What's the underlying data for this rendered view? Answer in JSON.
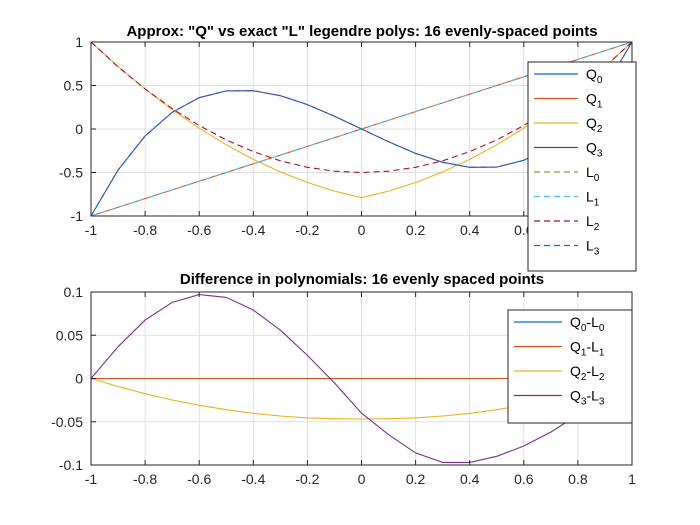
{
  "colors": {
    "blue": "#0072BD",
    "orange": "#D95319",
    "yellow": "#EDB120",
    "purple": "#7E2F8E",
    "green": "#77AC30",
    "cyan": "#4DBEEE",
    "darkred": "#A2142F",
    "grid": "#dfdfdf",
    "axis": "#262626"
  },
  "chart_data": [
    {
      "type": "line",
      "title": "Approx: \"Q\" vs exact \"L\" legendre polys: 16 evenly-spaced points",
      "xlabel": "",
      "ylabel": "",
      "xlim": [
        -1,
        1
      ],
      "ylim": [
        -1,
        1
      ],
      "xticks": [
        -1,
        -0.8,
        -0.6,
        -0.4,
        -0.2,
        0,
        0.2,
        0.4,
        0.6,
        0.8,
        1
      ],
      "xtick_labels": [
        "-1",
        "-0.8",
        "-0.6",
        "-0.4",
        "-0.2",
        "0",
        "0.2",
        "0.4",
        "0.6",
        "0.8",
        "1"
      ],
      "yticks": [
        -1,
        -0.5,
        0,
        0.5,
        1
      ],
      "ytick_labels": [
        "-1",
        "-0.5",
        "0",
        "0.5",
        "1"
      ],
      "grid": true,
      "legend_position": "right",
      "series": [
        {
          "name": "Q",
          "sub": "0",
          "color": "#0072BD",
          "style": "solid",
          "x": [
            -1,
            1
          ],
          "values": [
            1,
            1
          ]
        },
        {
          "name": "Q",
          "sub": "1",
          "color": "#D95319",
          "style": "solid",
          "x": [
            -1,
            1
          ],
          "values": [
            -1,
            1
          ]
        },
        {
          "name": "Q",
          "sub": "2",
          "color": "#EDB120",
          "style": "solid",
          "x": [
            -1,
            -0.9,
            -0.8,
            -0.7,
            -0.6,
            -0.5,
            -0.4,
            -0.3,
            -0.2,
            -0.1,
            0,
            0.1,
            0.2,
            0.3,
            0.4,
            0.5,
            0.6,
            0.7,
            0.8,
            0.9,
            1
          ],
          "values": [
            1,
            0.7183,
            0.4593,
            0.2231,
            0.0096,
            -0.1812,
            -0.3489,
            -0.4935,
            -0.6152,
            -0.7137,
            -0.7892,
            -0.7137,
            -0.6152,
            -0.4935,
            -0.3489,
            -0.1812,
            0.0096,
            0.2231,
            0.4593,
            0.7183,
            1
          ]
        },
        {
          "name": "Q",
          "sub": "3",
          "color": "#7E2F8E",
          "style": "solid",
          "x": [
            -1,
            -0.9,
            -0.8,
            -0.7,
            -0.6,
            -0.5,
            -0.4,
            -0.3,
            -0.2,
            -0.1,
            0,
            0.1,
            0.2,
            0.3,
            0.4,
            0.5,
            0.6,
            0.7,
            0.8,
            0.9,
            1
          ],
          "values": [
            -1,
            -0.4725,
            -0.08,
            0.1925,
            0.36,
            0.4375,
            0.44,
            0.3825,
            0.28,
            0.1475,
            0,
            -0.1475,
            -0.28,
            -0.3825,
            -0.44,
            -0.4375,
            -0.36,
            -0.1925,
            0.08,
            0.4725,
            1
          ]
        },
        {
          "name": "L",
          "sub": "0",
          "color": "#77AC30",
          "style": "dashed",
          "x": [
            -1,
            1
          ],
          "values": [
            1,
            1
          ]
        },
        {
          "name": "L",
          "sub": "1",
          "color": "#4DBEEE",
          "style": "dashed",
          "x": [
            -1,
            1
          ],
          "values": [
            -1,
            1
          ]
        },
        {
          "name": "L",
          "sub": "2",
          "color": "#A2142F",
          "style": "dashed",
          "x": [
            -1,
            -0.9,
            -0.8,
            -0.7,
            -0.6,
            -0.5,
            -0.4,
            -0.3,
            -0.2,
            -0.1,
            0,
            0.1,
            0.2,
            0.3,
            0.4,
            0.5,
            0.6,
            0.7,
            0.8,
            0.9,
            1
          ],
          "values": [
            1,
            0.715,
            0.46,
            0.235,
            0.04,
            -0.125,
            -0.26,
            -0.365,
            -0.44,
            -0.485,
            -0.5,
            -0.485,
            -0.44,
            -0.365,
            -0.26,
            -0.125,
            0.04,
            0.235,
            0.46,
            0.715,
            1
          ]
        },
        {
          "name": "L",
          "sub": "3",
          "color": "#0072BD",
          "style": "dashed",
          "x": [
            -1,
            -0.9,
            -0.8,
            -0.7,
            -0.6,
            -0.5,
            -0.4,
            -0.3,
            -0.2,
            -0.1,
            0,
            0.1,
            0.2,
            0.3,
            0.4,
            0.5,
            0.6,
            0.7,
            0.8,
            0.9,
            1
          ],
          "values": [
            -1,
            -0.4725,
            -0.08,
            0.1925,
            0.36,
            0.4375,
            0.44,
            0.3825,
            0.28,
            0.1475,
            0,
            -0.1475,
            -0.28,
            -0.3825,
            -0.44,
            -0.4375,
            -0.36,
            -0.1925,
            0.08,
            0.4725,
            1
          ]
        }
      ]
    },
    {
      "type": "line",
      "title": "Difference in polynomials: 16 evenly spaced points",
      "xlabel": "",
      "ylabel": "",
      "xlim": [
        -1,
        1
      ],
      "ylim": [
        -0.1,
        0.1
      ],
      "xticks": [
        -1,
        -0.8,
        -0.6,
        -0.4,
        -0.2,
        0,
        0.2,
        0.4,
        0.6,
        0.8,
        1
      ],
      "xtick_labels": [
        "-1",
        "-0.8",
        "-0.6",
        "-0.4",
        "-0.2",
        "0",
        "0.2",
        "0.4",
        "0.6",
        "0.8",
        "1"
      ],
      "yticks": [
        -0.1,
        -0.05,
        0,
        0.05,
        0.1
      ],
      "ytick_labels": [
        "-0.1",
        "-0.05",
        "0",
        "0.05",
        "0.1"
      ],
      "grid": true,
      "legend_position": "top-right",
      "series": [
        {
          "name": "Q",
          "sub": "0",
          "name2": "-L",
          "sub2": "0",
          "color": "#0072BD",
          "style": "solid",
          "x": [
            -1,
            1
          ],
          "values": [
            0,
            0
          ]
        },
        {
          "name": "Q",
          "sub": "1",
          "name2": "-L",
          "sub2": "1",
          "color": "#D95319",
          "style": "solid",
          "x": [
            -1,
            1
          ],
          "values": [
            0,
            0
          ]
        },
        {
          "name": "Q",
          "sub": "2",
          "name2": "-L",
          "sub2": "2",
          "color": "#EDB120",
          "style": "solid",
          "x": [
            -1,
            -0.9,
            -0.8,
            -0.7,
            -0.6,
            -0.5,
            -0.4,
            -0.3,
            -0.2,
            -0.1,
            0,
            0.1,
            0.2,
            0.3,
            0.4,
            0.5,
            0.6,
            0.7,
            0.8,
            0.9,
            1
          ],
          "values": [
            0,
            -0.0093,
            -0.0176,
            -0.0248,
            -0.031,
            -0.0361,
            -0.0403,
            -0.0434,
            -0.0455,
            -0.0465,
            -0.0468,
            -0.0465,
            -0.0455,
            -0.0434,
            -0.0403,
            -0.0361,
            -0.031,
            -0.0248,
            -0.0176,
            -0.0093,
            0
          ]
        },
        {
          "name": "Q",
          "sub": "3",
          "name2": "-L",
          "sub2": "3",
          "color": "#7E2F8E",
          "style": "solid",
          "x": [
            -1,
            -0.9,
            -0.8,
            -0.7,
            -0.6,
            -0.5,
            -0.4,
            -0.3,
            -0.2,
            -0.1,
            0,
            0.1,
            0.2,
            0.3,
            0.4,
            0.5,
            0.6,
            0.7,
            0.8,
            0.9,
            1
          ],
          "values": [
            0,
            0.0367,
            0.0675,
            0.088,
            0.097,
            0.0938,
            0.0792,
            0.0558,
            0.0267,
            -0.0052,
            -0.04,
            -0.065,
            -0.086,
            -0.097,
            -0.097,
            -0.09,
            -0.078,
            -0.062,
            -0.042,
            -0.02,
            0
          ]
        }
      ]
    }
  ]
}
